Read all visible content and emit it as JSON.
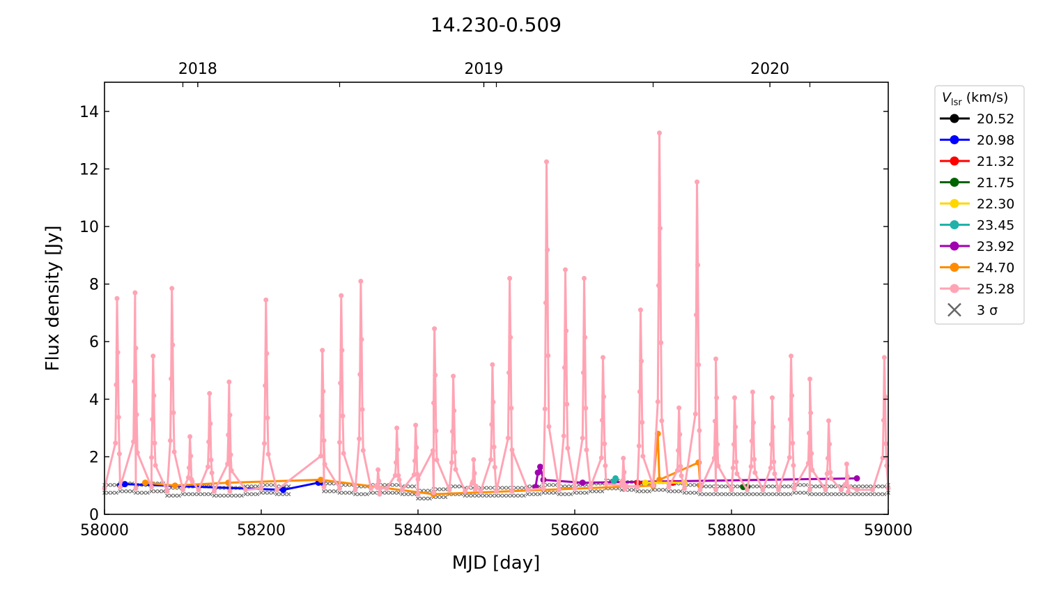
{
  "chart_data": {
    "type": "line",
    "title": "14.230-0.509",
    "xlabel": "MJD [day]",
    "ylabel": "Flux density [Jy]",
    "xlim": [
      58000,
      59000
    ],
    "ylim": [
      0,
      15
    ],
    "x_ticks": [
      "58000",
      "58200",
      "58400",
      "58600",
      "58800",
      "59000"
    ],
    "y_ticks": [
      "0",
      "2",
      "4",
      "6",
      "8",
      "10",
      "12",
      "14"
    ],
    "top_axis": {
      "ticks": [
        {
          "label": "2018",
          "mjd": 58119
        },
        {
          "label": "2019",
          "mjd": 58484
        },
        {
          "label": "2020",
          "mjd": 58849
        }
      ]
    },
    "legend": {
      "title_main": "V",
      "title_sub": "lsr",
      "title_unit": " (km/s)",
      "placement": "outside-right",
      "entries": [
        {
          "label": "20.52",
          "color": "#000000"
        },
        {
          "label": "20.98",
          "color": "#0000ff"
        },
        {
          "label": "21.32",
          "color": "#ff0000"
        },
        {
          "label": "21.75",
          "color": "#006400"
        },
        {
          "label": "22.30",
          "color": "#ffd700"
        },
        {
          "label": "23.45",
          "color": "#20b2aa"
        },
        {
          "label": "23.92",
          "color": "#a000b0"
        },
        {
          "label": "24.70",
          "color": "#ff8c00"
        },
        {
          "label": "25.28",
          "color": "#ffa4b4"
        }
      ],
      "sigma_label": "3 σ",
      "sigma_color": "#666666"
    },
    "baseline_25_28": {
      "x": [
        58000,
        58020,
        58040,
        58060,
        58080,
        58100,
        58120,
        58140,
        58160,
        58180,
        58200,
        58220,
        58280,
        58300,
        58320,
        58340,
        58360,
        58380,
        58400,
        58420,
        58440,
        58460,
        58480,
        58500,
        58520,
        58540,
        58560,
        58580,
        58600,
        58620,
        58640,
        58660,
        58680,
        58700,
        58720,
        58740,
        58760,
        58780,
        58800,
        58820,
        58840,
        58860,
        58880,
        58900,
        58920,
        58940,
        58960,
        58980,
        59000
      ],
      "y": [
        0.9,
        0.95,
        0.9,
        0.95,
        0.8,
        0.85,
        0.85,
        0.8,
        0.8,
        0.85,
        0.9,
        0.85,
        0.95,
        0.9,
        0.85,
        0.9,
        0.9,
        0.85,
        0.7,
        0.75,
        0.85,
        0.8,
        0.8,
        0.8,
        0.8,
        0.85,
        0.9,
        0.85,
        0.9,
        0.95,
        1.05,
        1.0,
        0.95,
        1.0,
        0.95,
        0.9,
        0.85,
        0.85,
        0.85,
        0.85,
        0.85,
        0.85,
        0.9,
        0.85,
        0.85,
        0.85,
        0.85,
        0.85,
        0.9
      ]
    },
    "flares_25_28": [
      {
        "mjd": 58016,
        "peak": 7.5
      },
      {
        "mjd": 58039,
        "peak": 7.7
      },
      {
        "mjd": 58062,
        "peak": 5.5
      },
      {
        "mjd": 58086,
        "peak": 7.85
      },
      {
        "mjd": 58109,
        "peak": 2.7
      },
      {
        "mjd": 58134,
        "peak": 4.2
      },
      {
        "mjd": 58159,
        "peak": 4.6
      },
      {
        "mjd": 58206,
        "peak": 7.45
      },
      {
        "mjd": 58278,
        "peak": 5.7
      },
      {
        "mjd": 58302,
        "peak": 7.6
      },
      {
        "mjd": 58327,
        "peak": 8.1
      },
      {
        "mjd": 58349,
        "peak": 1.55
      },
      {
        "mjd": 58373,
        "peak": 3.0
      },
      {
        "mjd": 58397,
        "peak": 3.1
      },
      {
        "mjd": 58421,
        "peak": 6.45
      },
      {
        "mjd": 58445,
        "peak": 4.8
      },
      {
        "mjd": 58471,
        "peak": 1.9
      },
      {
        "mjd": 58495,
        "peak": 5.2
      },
      {
        "mjd": 58517,
        "peak": 8.2
      },
      {
        "mjd": 58564,
        "peak": 12.25
      },
      {
        "mjd": 58588,
        "peak": 8.5
      },
      {
        "mjd": 58612,
        "peak": 8.2
      },
      {
        "mjd": 58636,
        "peak": 5.45
      },
      {
        "mjd": 58662,
        "peak": 1.95
      },
      {
        "mjd": 58684,
        "peak": 7.1
      },
      {
        "mjd": 58708,
        "peak": 13.25
      },
      {
        "mjd": 58733,
        "peak": 3.7
      },
      {
        "mjd": 58756,
        "peak": 11.55
      },
      {
        "mjd": 58780,
        "peak": 5.4
      },
      {
        "mjd": 58804,
        "peak": 4.05
      },
      {
        "mjd": 58827,
        "peak": 4.25
      },
      {
        "mjd": 58852,
        "peak": 4.05
      },
      {
        "mjd": 58876,
        "peak": 5.5
      },
      {
        "mjd": 58900,
        "peak": 4.7
      },
      {
        "mjd": 58924,
        "peak": 3.25
      },
      {
        "mjd": 58947,
        "peak": 1.75
      },
      {
        "mjd": 58995,
        "peak": 5.45
      }
    ],
    "minor_series": [
      {
        "label": "20.98",
        "x": [
          58020,
          58026,
          58228,
          58273,
          58278
        ],
        "y": [
          1.0,
          1.05,
          0.85,
          1.1,
          1.1
        ]
      },
      {
        "label": "23.92",
        "x": [
          58550,
          58553,
          58556,
          58560,
          58610,
          58960
        ],
        "y": [
          0.95,
          1.45,
          1.65,
          1.2,
          1.1,
          1.25
        ]
      },
      {
        "label": "24.70",
        "x": [
          58052,
          58090,
          58158,
          58276,
          58420,
          58700,
          58706,
          58708,
          58758,
          58760
        ],
        "y": [
          1.1,
          1.0,
          1.1,
          1.2,
          0.7,
          1.0,
          2.8,
          1.2,
          1.8,
          1.0
        ]
      },
      {
        "label": "23.45",
        "x": [
          58650,
          58652
        ],
        "y": [
          1.15,
          1.25
        ]
      },
      {
        "label": "21.32",
        "x": [
          58680,
          58725
        ],
        "y": [
          1.1,
          1.1
        ]
      },
      {
        "label": "21.75",
        "x": [
          58815,
          58820
        ],
        "y": [
          0.95,
          0.95
        ]
      },
      {
        "label": "22.30",
        "x": [
          58690,
          58740
        ],
        "y": [
          1.1,
          1.1
        ]
      }
    ]
  }
}
